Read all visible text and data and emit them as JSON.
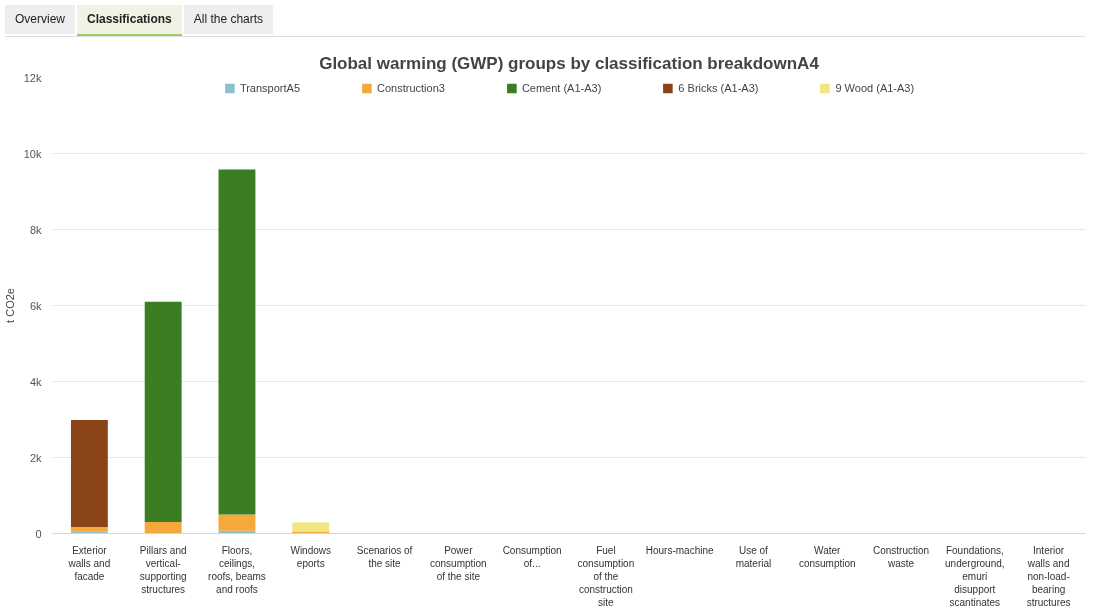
{
  "chart_data": {
    "type": "bar",
    "title": "Global warming (GWP) groups by classification breakdownA4",
    "ylabel": "t CO2e",
    "annotations": [
      "Overview",
      "Classifications",
      "All the charts"
    ],
    "categories": [
      "Exterior walls and facade",
      "Pillars and vertical-supporting structures",
      "Floors, ceilings, roofs, beams and roofs",
      "Windows eports",
      "Scenarios of the site",
      "Power consumption of the site",
      "Consumption of...",
      "Fuel consumption of the construction site",
      "Hours-machine",
      "Use of material",
      "Water consumption",
      "Construction waste",
      "Foundations, underground, emuri disupport scantinates",
      "Interior walls and non-load-bearing structures"
    ],
    "stacked": true,
    "series": [
      {
        "name": "TransportA5",
        "color": "#8cc0cc",
        "values": [
          60,
          0,
          70,
          0,
          0,
          0,
          0,
          0,
          0,
          0,
          0,
          0,
          0,
          0
        ]
      },
      {
        "name": "Construction3",
        "color": "#f5a93c",
        "values": [
          110,
          300,
          430,
          50,
          0,
          0,
          0,
          0,
          0,
          0,
          0,
          0,
          0,
          0
        ]
      },
      {
        "name": "Cement (A1-A3)",
        "color": "#3a7d23",
        "values": [
          0,
          5800,
          9080,
          0,
          0,
          0,
          0,
          0,
          0,
          0,
          0,
          0,
          0,
          0
        ]
      },
      {
        "name": "6 Bricks (A1-A3)",
        "color": "#8b4418",
        "values": [
          2820,
          0,
          0,
          0,
          0,
          0,
          0,
          0,
          0,
          0,
          0,
          0,
          0,
          0
        ]
      },
      {
        "name": "9 Wood (A1-A3)",
        "color": "#f2e680",
        "values": [
          0,
          0,
          0,
          240,
          0,
          0,
          0,
          0,
          0,
          0,
          0,
          0,
          0,
          0
        ]
      }
    ],
    "ylim": [
      0,
      12000
    ],
    "yticks": [
      {
        "value": 0,
        "label": "0"
      },
      {
        "value": 2000,
        "label": "2k"
      },
      {
        "value": 4000,
        "label": "4k"
      },
      {
        "value": 6000,
        "label": "6k"
      },
      {
        "value": 8000,
        "label": "8k"
      },
      {
        "value": 10000,
        "label": "10k"
      },
      {
        "value": 12000,
        "label": "12k"
      }
    ],
    "grid": "y",
    "legend": "top"
  }
}
